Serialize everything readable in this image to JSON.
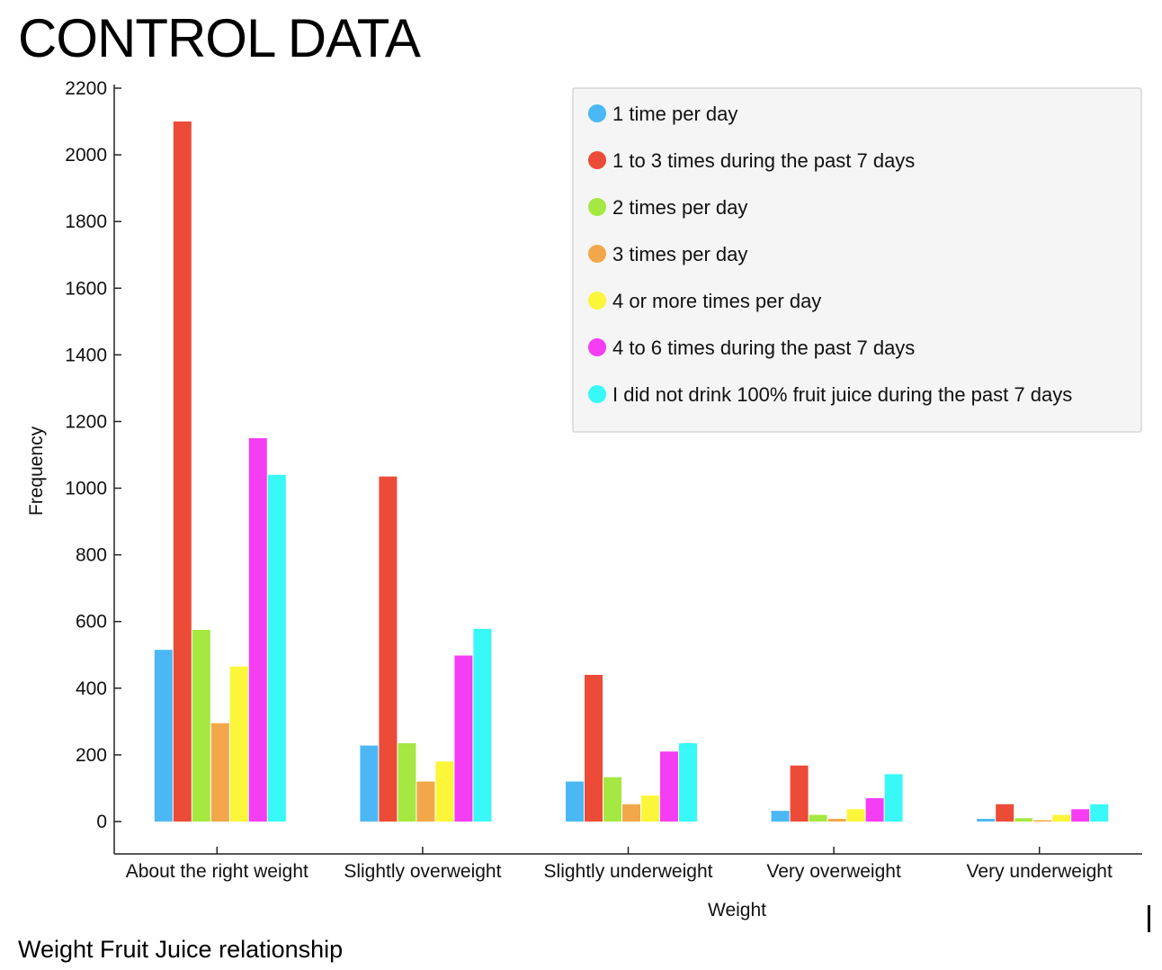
{
  "page": {
    "title": "CONTROL DATA",
    "caption": "Weight Fruit Juice relationship"
  },
  "chart_data": {
    "type": "bar",
    "xlabel": "Weight",
    "ylabel": "Frequency",
    "ylim": [
      0,
      2200
    ],
    "yticks": [
      0,
      200,
      400,
      600,
      800,
      1000,
      1200,
      1400,
      1600,
      1800,
      2000,
      2200
    ],
    "grid": false,
    "legend_position": "top-right",
    "categories": [
      "About the right weight",
      "Slightly overweight",
      "Slightly underweight",
      "Very overweight",
      "Very underweight"
    ],
    "series": [
      {
        "name": "1 time per day",
        "color": "#4bb8f5",
        "values": [
          515,
          228,
          120,
          32,
          8
        ]
      },
      {
        "name": "1 to 3 times during the past 7 days",
        "color": "#ec4b38",
        "values": [
          2100,
          1035,
          440,
          168,
          52
        ]
      },
      {
        "name": "2 times per day",
        "color": "#a5e841",
        "values": [
          575,
          235,
          133,
          20,
          10
        ]
      },
      {
        "name": "3 times per day",
        "color": "#f2a84a",
        "values": [
          295,
          120,
          52,
          8,
          4
        ]
      },
      {
        "name": "4 or more times per day",
        "color": "#fbf63a",
        "values": [
          465,
          180,
          78,
          37,
          20
        ]
      },
      {
        "name": "4 to 6 times during the past 7 days",
        "color": "#f53df3",
        "values": [
          1150,
          498,
          210,
          70,
          37
        ]
      },
      {
        "name": "I did not drink 100% fruit juice during the past 7 days",
        "color": "#38f8f8",
        "values": [
          1040,
          578,
          235,
          142,
          52
        ]
      }
    ]
  }
}
